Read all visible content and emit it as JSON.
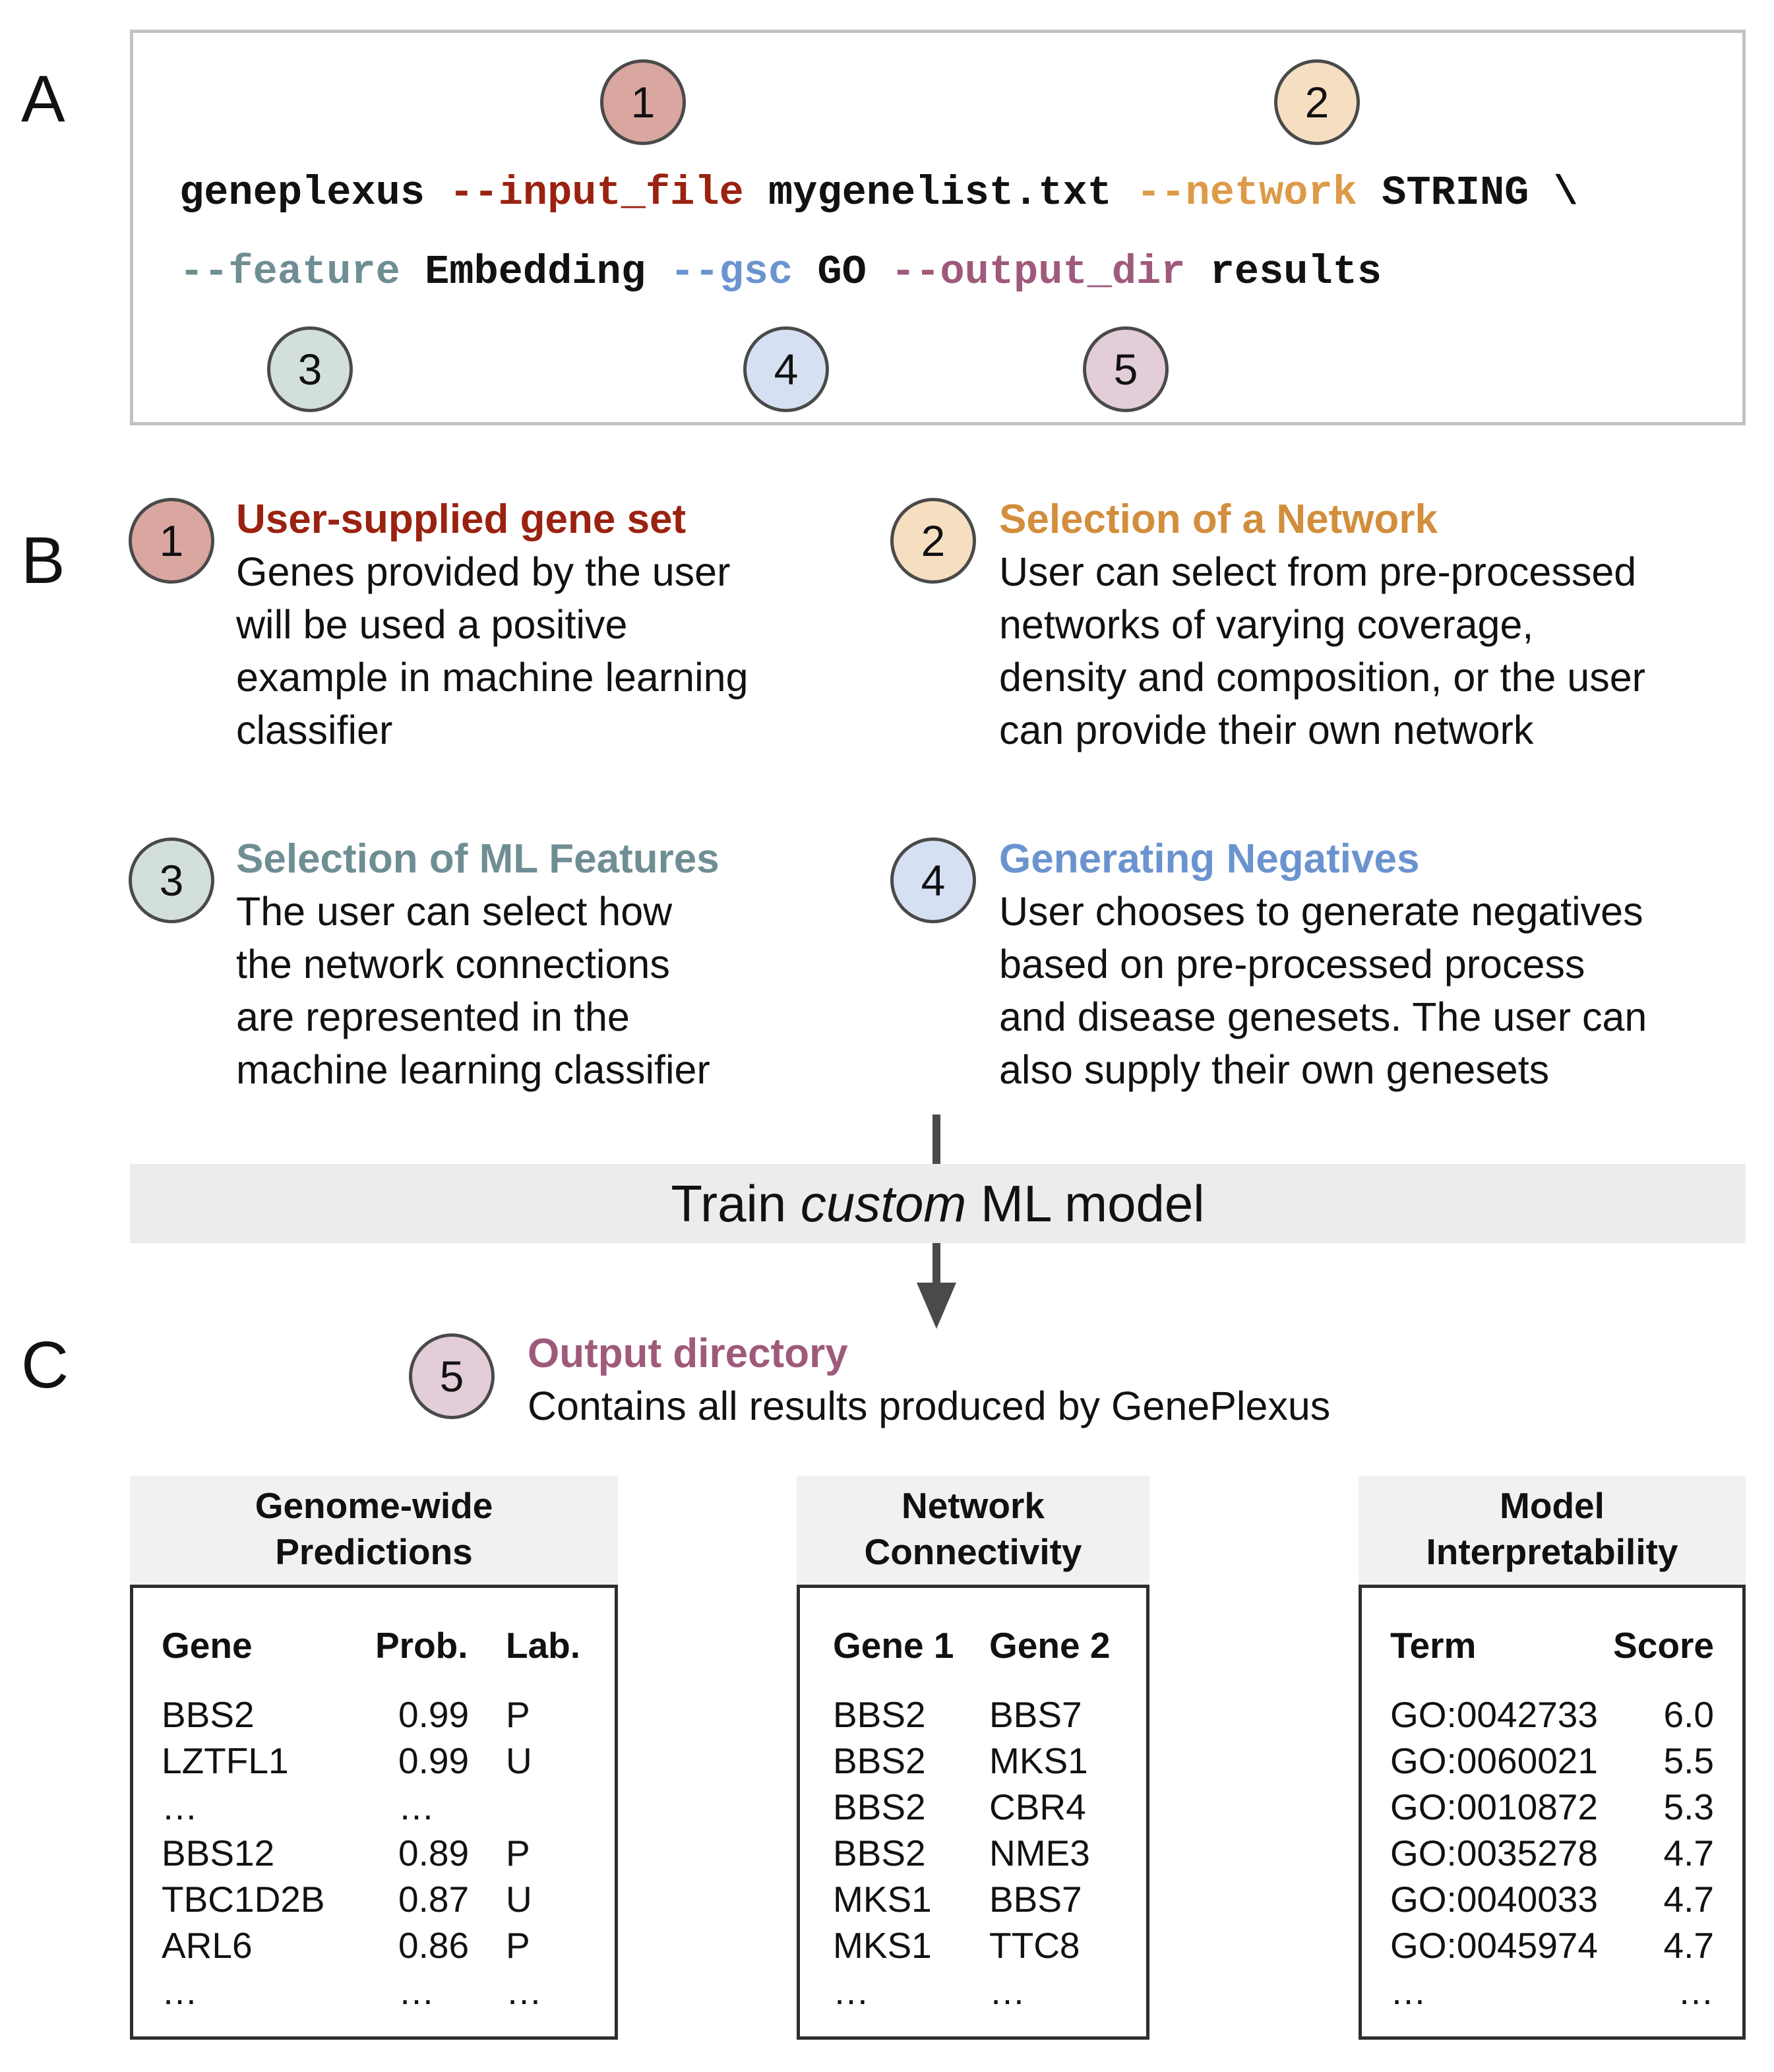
{
  "panels": {
    "a": "A",
    "b": "B",
    "c": "C"
  },
  "command": {
    "line1": [
      {
        "text": "geneplexus ",
        "style": "plain"
      },
      {
        "text": "--input_file",
        "style": "k1"
      },
      {
        "text": " mygenelist.txt ",
        "style": "plain"
      },
      {
        "text": "--network",
        "style": "k2"
      },
      {
        "text": " STRING \\",
        "style": "plain"
      }
    ],
    "line2": [
      {
        "text": "--feature",
        "style": "k3"
      },
      {
        "text": " Embedding ",
        "style": "plain"
      },
      {
        "text": "--gsc",
        "style": "k4"
      },
      {
        "text": " GO ",
        "style": "plain"
      },
      {
        "text": "--output_dir",
        "style": "k5"
      },
      {
        "text": " results",
        "style": "plain"
      }
    ],
    "markers": [
      "1",
      "2",
      "3",
      "4",
      "5"
    ]
  },
  "steps": [
    {
      "num": "1",
      "title": "User-supplied gene set",
      "lines": [
        "Genes provided by the user",
        "will be used a positive",
        "example in machine learning",
        "classifier"
      ]
    },
    {
      "num": "2",
      "title": "Selection of a Network",
      "lines": [
        "User can select from pre-processed",
        "networks of varying coverage,",
        "density and composition, or the user",
        "can provide their own network"
      ]
    },
    {
      "num": "3",
      "title": "Selection of ML Features",
      "lines": [
        "The user can select how",
        "the network connections",
        "are represented in the",
        "machine learning classifier"
      ]
    },
    {
      "num": "4",
      "title": "Generating Negatives",
      "lines": [
        "User chooses to generate negatives",
        "based on pre-processed process",
        "and disease genesets. The user can",
        "also supply their own genesets"
      ]
    },
    {
      "num": "5",
      "title": "Output directory",
      "lines": [
        "Contains all results produced by GenePlexus"
      ]
    }
  ],
  "train": {
    "pre": "Train ",
    "emph": "custom",
    "post": " ML model"
  },
  "tables": [
    {
      "title": [
        "Genome-wide",
        "Predictions"
      ],
      "columns": [
        "Gene",
        "Prob.",
        "Lab."
      ],
      "rows": [
        [
          "BBS2",
          "0.99",
          "P"
        ],
        [
          "LZTFL1",
          "0.99",
          "U"
        ],
        [
          "…",
          "…",
          ""
        ],
        [
          "BBS12",
          "0.89",
          "P"
        ],
        [
          "TBC1D2B",
          "0.87",
          "U"
        ],
        [
          "ARL6",
          "0.86",
          "P"
        ],
        [
          "…",
          "…",
          "…"
        ]
      ]
    },
    {
      "title": [
        "Network",
        "Connectivity"
      ],
      "columns": [
        "Gene 1",
        "Gene 2"
      ],
      "rows": [
        [
          "BBS2",
          "BBS7"
        ],
        [
          "BBS2",
          "MKS1"
        ],
        [
          "BBS2",
          "CBR4"
        ],
        [
          "BBS2",
          "NME3"
        ],
        [
          "MKS1",
          "BBS7"
        ],
        [
          "MKS1",
          "TTC8"
        ],
        [
          "…",
          "…"
        ]
      ]
    },
    {
      "title": [
        "Model",
        "Interpretability"
      ],
      "columns": [
        "Term",
        "Score"
      ],
      "rows": [
        [
          "GO:0042733",
          "6.0"
        ],
        [
          "GO:0060021",
          "5.5"
        ],
        [
          "GO:0010872",
          "5.3"
        ],
        [
          "GO:0035278",
          "4.7"
        ],
        [
          "GO:0040033",
          "4.7"
        ],
        [
          "GO:0045974",
          "4.7"
        ],
        [
          "…",
          "…"
        ]
      ]
    }
  ],
  "colors": {
    "step1": "#9a2210",
    "step2": "#d28e3c",
    "step3": "#6f8e94",
    "step4": "#6b93cf",
    "step5": "#9f5a7b"
  }
}
